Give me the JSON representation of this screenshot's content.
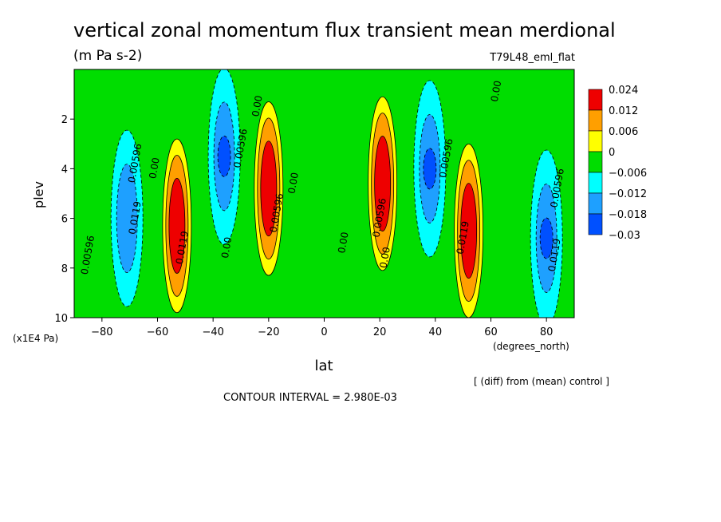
{
  "chart_data": {
    "type": "contour",
    "title": "vertical zonal momentum flux transient mean merdional",
    "units": "(m Pa s-2)",
    "run_label": "T79L48_eml_flat",
    "xlabel": "lat",
    "xunits": "(degrees_north)",
    "ylabel": "plev",
    "yunits": "(x1E4 Pa)",
    "xlim": [
      -90,
      90
    ],
    "ylim": [
      10,
      0
    ],
    "x_ticks": [
      -80,
      -60,
      -40,
      -20,
      0,
      20,
      40,
      60,
      80
    ],
    "y_ticks": [
      2,
      4,
      6,
      8,
      10
    ],
    "comparison_note": "[ (diff) from (mean) control ]",
    "contour_interval": "CONTOUR INTERVAL = 2.980E-03",
    "legend": {
      "placement": "right",
      "levels": [
        "0.024",
        "0.012",
        "0.006",
        "0",
        "−0.006",
        "−0.012",
        "−0.018",
        "−0.03"
      ],
      "colors": [
        "#ee0000",
        "#ff9f00",
        "#ffff00",
        "#00dd00",
        "#00ffff",
        "#1ea0ff",
        "#0050ff"
      ]
    },
    "field_features": [
      {
        "lat": -53,
        "plev": 6.3,
        "value": 0.024,
        "sign": "positive",
        "label": "0.0119"
      },
      {
        "lat": -20,
        "plev": 4.8,
        "value": 0.024,
        "sign": "positive",
        "label": "0.00596"
      },
      {
        "lat": 21,
        "plev": 4.6,
        "value": 0.024,
        "sign": "positive",
        "label": "0.00596"
      },
      {
        "lat": 52,
        "plev": 6.5,
        "value": 0.024,
        "sign": "positive",
        "label": "0.0119"
      },
      {
        "lat": -71,
        "plev": 6.0,
        "value": -0.012,
        "sign": "negative",
        "label": "0.0119"
      },
      {
        "lat": -36,
        "plev": 3.5,
        "value": -0.018,
        "sign": "negative",
        "label": "0.00596"
      },
      {
        "lat": 38,
        "plev": 4.0,
        "value": -0.018,
        "sign": "negative",
        "label": "0.00596"
      },
      {
        "lat": 80,
        "plev": 6.8,
        "value": -0.018,
        "sign": "negative",
        "label": "0.0119"
      }
    ],
    "contour_labels": [
      {
        "text": "0.00596",
        "lat": -84,
        "plev": 7.5
      },
      {
        "text": "0.00596",
        "lat": -67,
        "plev": 3.8
      },
      {
        "text": "0.0119",
        "lat": -67,
        "plev": 6.0
      },
      {
        "text": "0.00",
        "lat": -60,
        "plev": 4.0
      },
      {
        "text": "0.0119",
        "lat": -50,
        "plev": 7.2
      },
      {
        "text": "0.00",
        "lat": -34,
        "plev": 7.2
      },
      {
        "text": "0.00596",
        "lat": -29,
        "plev": 3.2
      },
      {
        "text": "0.00",
        "lat": -23,
        "plev": 1.5
      },
      {
        "text": "0.00596",
        "lat": -16,
        "plev": 5.8
      },
      {
        "text": "0.00",
        "lat": -10,
        "plev": 4.6
      },
      {
        "text": "0.00",
        "lat": 8,
        "plev": 7.0
      },
      {
        "text": "0.00596",
        "lat": 21,
        "plev": 6.0
      },
      {
        "text": "0.00",
        "lat": 23,
        "plev": 7.6
      },
      {
        "text": "0.00596",
        "lat": 45,
        "plev": 3.6
      },
      {
        "text": "0.0119",
        "lat": 51,
        "plev": 6.8
      },
      {
        "text": "0.00",
        "lat": 63,
        "plev": 0.9
      },
      {
        "text": "0.00596",
        "lat": 85,
        "plev": 4.8
      },
      {
        "text": "0.0119",
        "lat": 84,
        "plev": 7.5
      }
    ]
  }
}
